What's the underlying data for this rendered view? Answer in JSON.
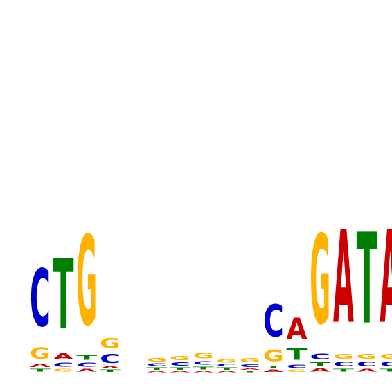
{
  "colors": {
    "A": "#cc0000",
    "C": "#0000cc",
    "G": "#ffb300",
    "T": "#008000"
  },
  "logo": {
    "type": "sequence-logo",
    "max_bits": 2.0,
    "positions": [
      {
        "letters": [
          {
            "l": "T",
            "h": 0.04
          },
          {
            "l": "A",
            "h": 0.05
          },
          {
            "l": "G",
            "h": 0.16
          },
          {
            "l": "C",
            "h": 0.82
          }
        ]
      },
      {
        "letters": [
          {
            "l": "G",
            "h": 0.04
          },
          {
            "l": "C",
            "h": 0.06
          },
          {
            "l": "A",
            "h": 0.09
          },
          {
            "l": "T",
            "h": 1.0
          }
        ]
      },
      {
        "letters": [
          {
            "l": "A",
            "h": 0.04
          },
          {
            "l": "C",
            "h": 0.06
          },
          {
            "l": "T",
            "h": 0.07
          },
          {
            "l": "G",
            "h": 1.28
          }
        ]
      },
      {
        "letters": [
          {
            "l": "T",
            "h": 0.03
          },
          {
            "l": "A",
            "h": 0.03
          },
          {
            "l": "C",
            "h": 0.13
          },
          {
            "l": "G",
            "h": 0.14
          }
        ]
      },
      {
        "letters": []
      },
      {
        "letters": [
          {
            "l": "A",
            "h": 0.02
          },
          {
            "l": "T",
            "h": 0.03
          },
          {
            "l": "C",
            "h": 0.04
          },
          {
            "l": "G",
            "h": 0.05
          }
        ]
      },
      {
        "letters": [
          {
            "l": "A",
            "h": 0.02
          },
          {
            "l": "T",
            "h": 0.03
          },
          {
            "l": "C",
            "h": 0.05
          },
          {
            "l": "G",
            "h": 0.06
          }
        ]
      },
      {
        "letters": [
          {
            "l": "A",
            "h": 0.02
          },
          {
            "l": "T",
            "h": 0.04
          },
          {
            "l": "C",
            "h": 0.05
          },
          {
            "l": "G",
            "h": 0.08
          }
        ]
      },
      {
        "letters": [
          {
            "l": "A",
            "h": 0.02
          },
          {
            "l": "T",
            "h": 0.03
          },
          {
            "l": "C",
            "h": 0.03
          },
          {
            "l": "G",
            "h": 0.05
          }
        ]
      },
      {
        "letters": [
          {
            "l": "T",
            "h": 0.02
          },
          {
            "l": "A",
            "h": 0.02
          },
          {
            "l": "C",
            "h": 0.04
          },
          {
            "l": "G",
            "h": 0.06
          }
        ]
      },
      {
        "letters": [
          {
            "l": "A",
            "h": 0.03
          },
          {
            "l": "T",
            "h": 0.04
          },
          {
            "l": "G",
            "h": 0.16
          },
          {
            "l": "C",
            "h": 0.46
          }
        ]
      },
      {
        "letters": [
          {
            "l": "G",
            "h": 0.03
          },
          {
            "l": "C",
            "h": 0.05
          },
          {
            "l": "T",
            "h": 0.16
          },
          {
            "l": "A",
            "h": 0.3
          }
        ]
      },
      {
        "letters": [
          {
            "l": "A",
            "h": 0.05
          },
          {
            "l": "T",
            "h": 0.05
          },
          {
            "l": "C",
            "h": 0.08
          },
          {
            "l": "G",
            "h": 1.28
          }
        ]
      },
      {
        "letters": [
          {
            "l": "T",
            "h": 0.04
          },
          {
            "l": "C",
            "h": 0.07
          },
          {
            "l": "G",
            "h": 0.07
          },
          {
            "l": "A",
            "h": 1.33
          }
        ]
      },
      {
        "letters": [
          {
            "l": "A",
            "h": 0.04
          },
          {
            "l": "C",
            "h": 0.07
          },
          {
            "l": "G",
            "h": 0.07
          },
          {
            "l": "T",
            "h": 1.3
          }
        ]
      },
      {
        "letters": [
          {
            "l": "T",
            "h": 0.04
          },
          {
            "l": "C",
            "h": 0.07
          },
          {
            "l": "G",
            "h": 0.07
          },
          {
            "l": "A",
            "h": 1.33
          }
        ]
      }
    ]
  }
}
